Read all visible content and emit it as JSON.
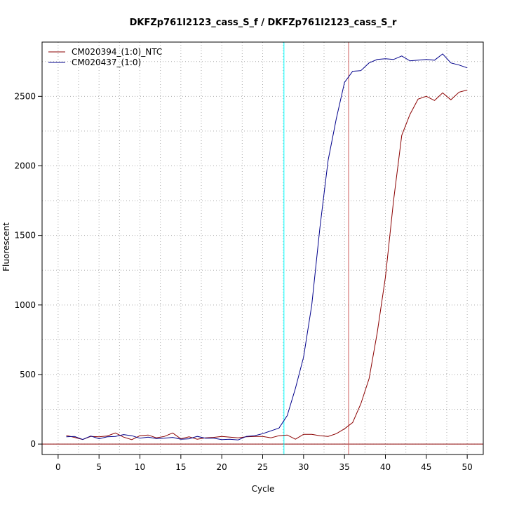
{
  "chart_data": {
    "type": "line",
    "title": "DKFZp761I2123_cass_S_f / DKFZp761I2123_cass_S_r",
    "xlabel": "Cycle",
    "ylabel": "Fluorescent",
    "xlim": [
      -1.96,
      51.96
    ],
    "ylim": [
      -75,
      2890
    ],
    "x_ticks": [
      0,
      5,
      10,
      15,
      20,
      25,
      30,
      35,
      40,
      45,
      50
    ],
    "y_ticks": [
      0,
      500,
      1000,
      1500,
      2000,
      2500
    ],
    "grid": true,
    "legend_position": "top-left",
    "baseline": {
      "y": 0,
      "color": "#8b0000"
    },
    "vertical_lines": [
      {
        "x": 27.6,
        "color": "#00ffff"
      },
      {
        "x": 35.5,
        "color": "#cd5c5c"
      }
    ],
    "x": [
      1,
      2,
      3,
      4,
      5,
      6,
      7,
      8,
      9,
      10,
      11,
      12,
      13,
      14,
      15,
      16,
      17,
      18,
      19,
      20,
      21,
      22,
      23,
      24,
      25,
      26,
      27,
      28,
      29,
      30,
      31,
      32,
      33,
      34,
      35,
      36,
      37,
      38,
      39,
      40,
      41,
      42,
      43,
      44,
      45,
      46,
      47,
      48,
      49,
      50
    ],
    "series": [
      {
        "name": "CM020394_(1:0)_NTC",
        "color": "#8b0000",
        "values": [
          62,
          48,
          33,
          55,
          52,
          58,
          80,
          50,
          32,
          60,
          65,
          45,
          55,
          80,
          38,
          52,
          35,
          45,
          48,
          55,
          50,
          45,
          52,
          55,
          55,
          45,
          60,
          65,
          35,
          70,
          70,
          60,
          55,
          75,
          110,
          155,
          290,
          470,
          800,
          1200,
          1750,
          2220,
          2370,
          2480,
          2500,
          2470,
          2525,
          2475,
          2530,
          2545
        ]
      },
      {
        "name": "CM020437_(1:0)",
        "color": "#00008b",
        "values": [
          52,
          55,
          33,
          58,
          38,
          52,
          55,
          68,
          60,
          42,
          50,
          40,
          42,
          48,
          35,
          38,
          55,
          42,
          42,
          32,
          35,
          30,
          55,
          60,
          75,
          95,
          115,
          205,
          400,
          625,
          1000,
          1560,
          2040,
          2340,
          2600,
          2680,
          2685,
          2740,
          2765,
          2770,
          2765,
          2790,
          2755,
          2760,
          2765,
          2760,
          2805,
          2740,
          2725,
          2705
        ]
      }
    ]
  }
}
